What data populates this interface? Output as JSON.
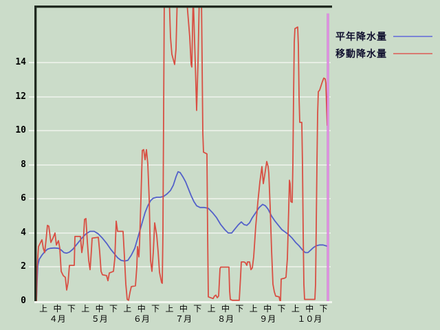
{
  "window": {
    "description": "precipitation chart panel"
  },
  "colors": {
    "background": "#cbdcc9",
    "plot_border": "#212b21",
    "bottom_axis": "#f2f6ef",
    "gridline": "#e7eee4",
    "normal_line": "#5360c9",
    "moving_line": "#d84f43",
    "cursor_line": "#cf5fd6",
    "cursor_core": "#f0c0ee",
    "legend_normal_swatch": "#7b84d6",
    "legend_moving_swatch": "#d87b71",
    "label_text": "#000000",
    "legend_text": "#10102e"
  },
  "legend": {
    "items": [
      {
        "label": "平年降水量",
        "color": "#7b84d6"
      },
      {
        "label": "移動降水量",
        "color": "#d87b71"
      }
    ]
  },
  "chart_data": {
    "type": "line",
    "title": "",
    "xlabel": "",
    "ylabel": "",
    "grid": true,
    "legend_position": "top-right",
    "y_axis": {
      "ticks": [
        0,
        2,
        4,
        6,
        8,
        10,
        12,
        14
      ],
      "min": 0,
      "max": 17.4
    },
    "x_axis": {
      "unit_labels": [
        "上",
        "中",
        "下"
      ],
      "month_labels": [
        "４月",
        "５月",
        "６月",
        "７月",
        "８月",
        "９月",
        "１０月"
      ],
      "days_total": 213,
      "note": "x expressed as day index from start of April; 21 ten-day periods (旬) across 7 months"
    },
    "cursor": {
      "day": 212,
      "from_value": 16.9,
      "to_value": 0
    },
    "series": [
      {
        "name": "平年降水量",
        "color": "#5360c9",
        "points": [
          [
            0,
            0
          ],
          [
            0.5,
            1.2
          ],
          [
            1,
            2.1
          ],
          [
            2,
            2.45
          ],
          [
            4,
            2.7
          ],
          [
            6,
            2.9
          ],
          [
            8,
            3.05
          ],
          [
            10,
            3.1
          ],
          [
            13,
            3.12
          ],
          [
            16,
            3.1
          ],
          [
            18,
            3.0
          ],
          [
            20,
            2.85
          ],
          [
            22,
            2.82
          ],
          [
            24,
            2.88
          ],
          [
            26.5,
            3.05
          ],
          [
            30,
            3.4
          ],
          [
            33,
            3.7
          ],
          [
            36,
            3.95
          ],
          [
            39,
            4.1
          ],
          [
            42,
            4.1
          ],
          [
            45,
            3.95
          ],
          [
            48,
            3.7
          ],
          [
            51,
            3.4
          ],
          [
            54,
            3.05
          ],
          [
            56.5,
            2.8
          ],
          [
            59,
            2.55
          ],
          [
            61.5,
            2.4
          ],
          [
            64,
            2.35
          ],
          [
            66.5,
            2.4
          ],
          [
            69,
            2.7
          ],
          [
            71.5,
            3.1
          ],
          [
            74,
            3.8
          ],
          [
            76.5,
            4.5
          ],
          [
            79,
            5.2
          ],
          [
            81,
            5.6
          ],
          [
            83,
            5.9
          ],
          [
            85,
            6.05
          ],
          [
            87.5,
            6.1
          ],
          [
            90,
            6.1
          ],
          [
            92.5,
            6.15
          ],
          [
            95,
            6.3
          ],
          [
            97.5,
            6.5
          ],
          [
            99.5,
            6.8
          ],
          [
            101.5,
            7.3
          ],
          [
            103,
            7.6
          ],
          [
            104.5,
            7.55
          ],
          [
            106.5,
            7.3
          ],
          [
            108.5,
            7.0
          ],
          [
            110.5,
            6.6
          ],
          [
            112.5,
            6.2
          ],
          [
            114.5,
            5.85
          ],
          [
            116.5,
            5.6
          ],
          [
            119,
            5.5
          ],
          [
            122,
            5.5
          ],
          [
            125,
            5.45
          ],
          [
            128,
            5.2
          ],
          [
            131,
            4.9
          ],
          [
            134,
            4.5
          ],
          [
            137,
            4.2
          ],
          [
            139.5,
            4.0
          ],
          [
            142,
            4.0
          ],
          [
            144.5,
            4.25
          ],
          [
            147,
            4.5
          ],
          [
            149,
            4.65
          ],
          [
            151,
            4.5
          ],
          [
            153,
            4.45
          ],
          [
            155,
            4.6
          ],
          [
            157,
            4.9
          ],
          [
            159.5,
            5.2
          ],
          [
            162,
            5.5
          ],
          [
            164.5,
            5.68
          ],
          [
            166.5,
            5.6
          ],
          [
            168.5,
            5.4
          ],
          [
            171,
            5.0
          ],
          [
            173.5,
            4.7
          ],
          [
            176,
            4.45
          ],
          [
            178.5,
            4.2
          ],
          [
            181,
            4.05
          ],
          [
            183.5,
            3.9
          ],
          [
            186,
            3.7
          ],
          [
            188.5,
            3.45
          ],
          [
            191,
            3.25
          ],
          [
            193.5,
            3.0
          ],
          [
            195.5,
            2.85
          ],
          [
            197.5,
            2.85
          ],
          [
            199.5,
            3.0
          ],
          [
            201.5,
            3.15
          ],
          [
            203.5,
            3.25
          ],
          [
            206,
            3.3
          ],
          [
            208.5,
            3.3
          ],
          [
            210.5,
            3.25
          ],
          [
            212.5,
            3.2
          ]
        ]
      },
      {
        "name": "移動降水量",
        "color": "#d84f43",
        "points": [
          [
            0,
            0
          ],
          [
            0.5,
            2.0
          ],
          [
            1.5,
            3.2
          ],
          [
            3,
            3.45
          ],
          [
            4,
            3.6
          ],
          [
            5,
            3.1
          ],
          [
            6,
            2.85
          ],
          [
            7,
            3.6
          ],
          [
            8,
            4.45
          ],
          [
            9,
            4.4
          ],
          [
            10.5,
            3.45
          ],
          [
            12,
            3.7
          ],
          [
            13.5,
            4.0
          ],
          [
            14.5,
            3.3
          ],
          [
            16,
            3.55
          ],
          [
            17,
            3.1
          ],
          [
            18,
            1.75
          ],
          [
            19.5,
            1.5
          ],
          [
            21,
            1.4
          ],
          [
            22,
            0.65
          ],
          [
            23,
            1.1
          ],
          [
            24,
            2.1
          ],
          [
            27.5,
            2.1
          ],
          [
            28,
            3.8
          ],
          [
            32,
            3.8
          ],
          [
            33,
            2.85
          ],
          [
            34,
            3.4
          ],
          [
            35,
            4.8
          ],
          [
            36,
            4.85
          ],
          [
            37,
            3.5
          ],
          [
            38,
            2.4
          ],
          [
            39,
            1.85
          ],
          [
            40,
            3.0
          ],
          [
            40.5,
            3.7
          ],
          [
            45,
            3.75
          ],
          [
            46,
            2.9
          ],
          [
            47,
            1.75
          ],
          [
            48,
            1.55
          ],
          [
            51,
            1.5
          ],
          [
            52,
            1.2
          ],
          [
            53,
            1.65
          ],
          [
            56,
            1.75
          ],
          [
            57,
            2.5
          ],
          [
            58,
            4.7
          ],
          [
            59,
            4.1
          ],
          [
            63,
            4.1
          ],
          [
            64,
            2.6
          ],
          [
            65,
            1.0
          ],
          [
            66,
            0.1
          ],
          [
            67,
            0.05
          ],
          [
            68,
            0.5
          ],
          [
            69,
            0.85
          ],
          [
            72,
            0.9
          ],
          [
            73,
            2.0
          ],
          [
            73.5,
            3.2
          ],
          [
            74.5,
            2.6
          ],
          [
            75,
            3.4
          ],
          [
            76,
            6.0
          ],
          [
            77,
            8.85
          ],
          [
            78,
            8.9
          ],
          [
            79,
            8.3
          ],
          [
            80,
            8.9
          ],
          [
            81,
            8.05
          ],
          [
            82,
            6.0
          ],
          [
            83,
            2.4
          ],
          [
            84,
            1.75
          ],
          [
            85,
            2.9
          ],
          [
            86,
            4.6
          ],
          [
            87.5,
            3.85
          ],
          [
            88.5,
            2.9
          ],
          [
            89.5,
            1.7
          ],
          [
            91,
            1.1
          ],
          [
            91.5,
            1.05
          ],
          [
            92,
            4.0
          ],
          [
            93,
            18
          ],
          [
            96.5,
            18
          ],
          [
            97.5,
            15.5
          ],
          [
            98.5,
            14.5
          ],
          [
            100.5,
            13.9
          ],
          [
            101.5,
            14.8
          ],
          [
            102.5,
            18
          ],
          [
            109,
            18
          ],
          [
            110,
            17.0
          ],
          [
            110.5,
            16.5
          ],
          [
            111.5,
            15.5
          ],
          [
            112.5,
            13.9
          ],
          [
            113,
            13.75
          ],
          [
            114,
            18
          ],
          [
            115.5,
            14.0
          ],
          [
            116.5,
            11.2
          ],
          [
            117.5,
            14.0
          ],
          [
            118.5,
            18
          ],
          [
            120,
            18
          ],
          [
            121,
            9.9
          ],
          [
            121.5,
            8.75
          ],
          [
            124,
            8.65
          ],
          [
            124.5,
            4.0
          ],
          [
            125,
            0.25
          ],
          [
            128.5,
            0.15
          ],
          [
            129.5,
            0.3
          ],
          [
            130.5,
            0.35
          ],
          [
            131.5,
            0.2
          ],
          [
            132.5,
            0.3
          ],
          [
            133.5,
            1.9
          ],
          [
            134,
            2.0
          ],
          [
            140,
            2.0
          ],
          [
            140.5,
            0.6
          ],
          [
            141,
            0.1
          ],
          [
            142.5,
            0.05
          ],
          [
            147.5,
            0.05
          ],
          [
            148.5,
            1.5
          ],
          [
            149,
            2.3
          ],
          [
            151,
            2.3
          ],
          [
            152,
            2.25
          ],
          [
            153,
            2.1
          ],
          [
            153.5,
            2.3
          ],
          [
            155,
            2.3
          ],
          [
            156,
            1.85
          ],
          [
            157,
            1.95
          ],
          [
            158,
            2.6
          ],
          [
            159.5,
            4.4
          ],
          [
            161,
            5.8
          ],
          [
            162.5,
            7.0
          ],
          [
            164,
            7.9
          ],
          [
            165,
            6.9
          ],
          [
            166,
            7.4
          ],
          [
            167.5,
            8.2
          ],
          [
            168.5,
            7.9
          ],
          [
            169,
            7.5
          ],
          [
            170,
            5.5
          ],
          [
            171,
            3.0
          ],
          [
            172,
            1.0
          ],
          [
            173,
            0.55
          ],
          [
            174,
            0.3
          ],
          [
            176.5,
            0.25
          ],
          [
            177,
            0.05
          ],
          [
            177.5,
            0.0
          ],
          [
            178,
            1.3
          ],
          [
            180.5,
            1.35
          ],
          [
            181.5,
            1.4
          ],
          [
            182.5,
            2.5
          ],
          [
            183.5,
            5.5
          ],
          [
            184,
            7.1
          ],
          [
            184.5,
            6.9
          ],
          [
            185,
            5.85
          ],
          [
            186,
            5.8
          ],
          [
            186.5,
            8.0
          ],
          [
            187,
            12.0
          ],
          [
            187.5,
            15.2
          ],
          [
            188,
            16.0
          ],
          [
            190,
            16.1
          ],
          [
            190.5,
            15.0
          ],
          [
            191,
            12.0
          ],
          [
            191.5,
            10.5
          ],
          [
            193,
            10.5
          ],
          [
            193.5,
            8.0
          ],
          [
            194,
            4.0
          ],
          [
            194.5,
            1.0
          ],
          [
            195,
            0.1
          ],
          [
            202.5,
            0.1
          ],
          [
            203,
            1.0
          ],
          [
            204,
            8.0
          ],
          [
            204.5,
            11.0
          ],
          [
            205,
            12.3
          ],
          [
            206,
            12.4
          ],
          [
            208,
            12.9
          ],
          [
            209,
            13.1
          ],
          [
            210,
            13.05
          ],
          [
            210.5,
            12.8
          ],
          [
            211,
            11.5
          ],
          [
            211.5,
            10.3
          ]
        ]
      }
    ]
  }
}
